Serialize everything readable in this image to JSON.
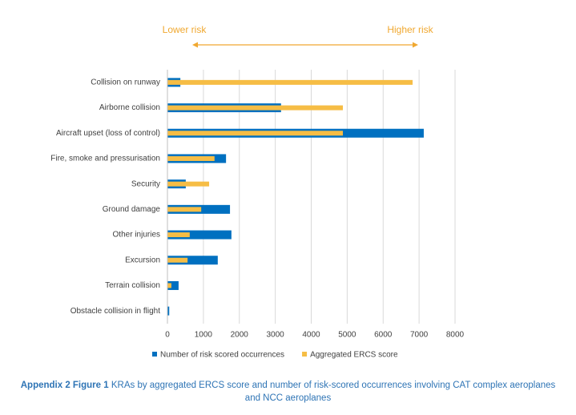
{
  "chart_data": {
    "type": "hbar_overlap",
    "annotation_low": "Lower risk",
    "annotation_high": "Higher risk",
    "categories": [
      "Collision on runway",
      "Airborne collision",
      "Aircraft upset (loss of control)",
      "Fire, smoke and pressurisation",
      "Security",
      "Ground damage",
      "Other injuries",
      "Excursion",
      "Terrain collision",
      "Obstacle collision in flight"
    ],
    "series": [
      {
        "name": "Number of risk scored occurrences",
        "color": "#0070c0",
        "values": [
          360,
          3160,
          7130,
          1630,
          510,
          1740,
          1780,
          1400,
          310,
          50
        ]
      },
      {
        "name": "Aggregated ERCS score",
        "color": "#f6bd45",
        "values": [
          6820,
          4880,
          4880,
          1310,
          1160,
          940,
          620,
          560,
          110,
          0
        ]
      }
    ],
    "xlim": [
      0,
      8000
    ],
    "xticks": [
      0,
      1000,
      2000,
      3000,
      4000,
      5000,
      6000,
      7000,
      8000
    ],
    "grid": true,
    "caption_label": "Appendix 2 Figure 1",
    "caption": "KRAs by aggregated ERCS score and number of risk-scored occurrences involving CAT complex aeroplanes and NCC aeroplanes"
  }
}
